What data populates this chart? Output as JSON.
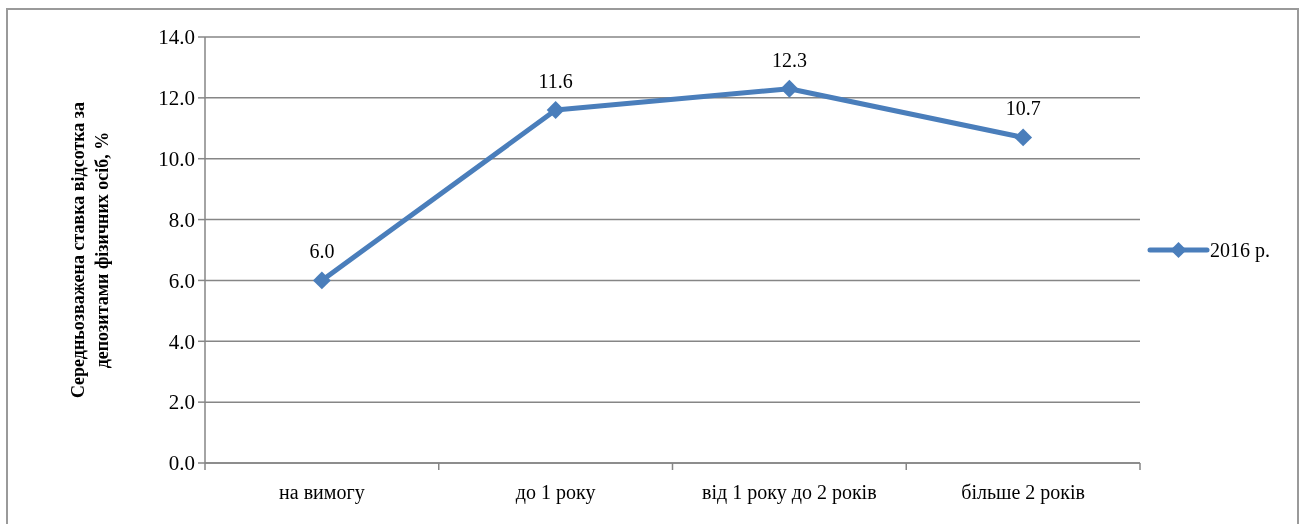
{
  "chart_data": {
    "type": "line",
    "ylabel": "Середньозважена ставка відсотка за депозитами фізичних осіб, %",
    "categories": [
      "на вимогу",
      "до 1 року",
      "від 1 року до 2 років",
      "більше 2 років"
    ],
    "series": [
      {
        "name": "2016 р.",
        "color": "#4a7ebb",
        "values": [
          6.0,
          11.6,
          12.3,
          10.7
        ],
        "value_labels": [
          "6.0",
          "11.6",
          "12.3",
          "10.7"
        ]
      }
    ],
    "ylim": [
      0,
      14
    ],
    "yticks": [
      {
        "value": 0,
        "label": "0.0"
      },
      {
        "value": 2,
        "label": "2.0"
      },
      {
        "value": 4,
        "label": "4.0"
      },
      {
        "value": 6,
        "label": "6.0"
      },
      {
        "value": 8,
        "label": "8.0"
      },
      {
        "value": 10,
        "label": "10.0"
      },
      {
        "value": 12,
        "label": "12.0"
      },
      {
        "value": 14,
        "label": "14.0"
      }
    ],
    "grid": "y",
    "legend": "right",
    "marker": "diamond",
    "line_style": "solid"
  }
}
